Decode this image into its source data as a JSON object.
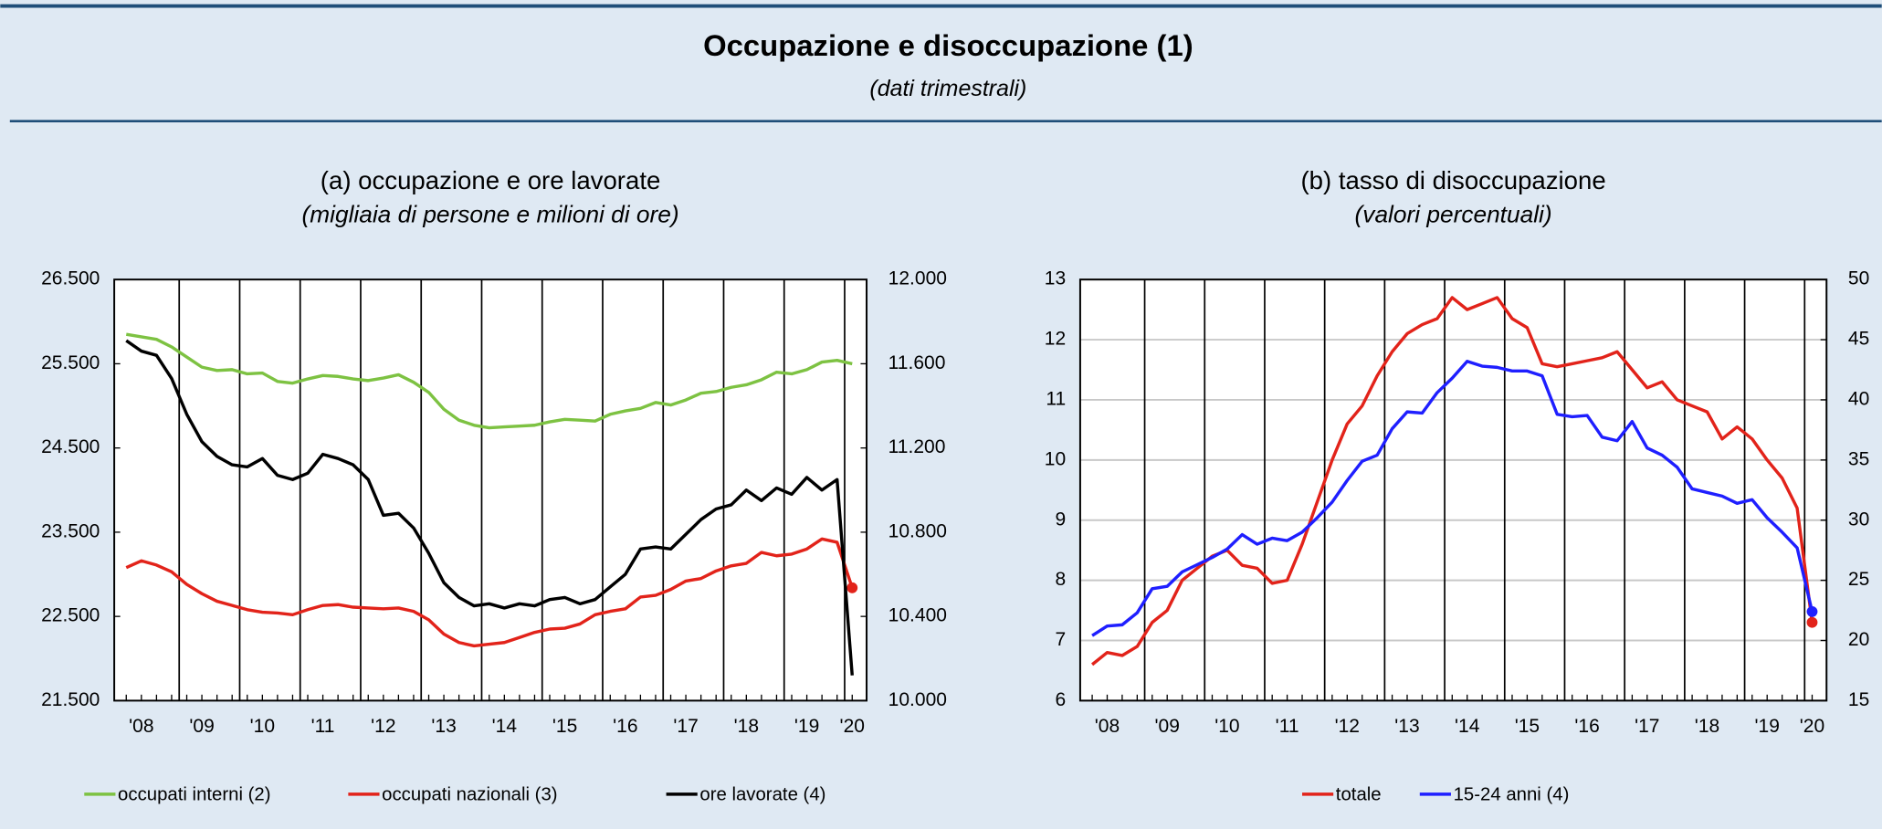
{
  "header": {
    "title": "Occupazione e disoccupazione (1)",
    "subtitle": "(dati trimestrali)"
  },
  "chart_data": [
    {
      "type": "line",
      "title": "(a) occupazione e ore lavorate",
      "subtitle": "(migliaia di persone e milioni di ore)",
      "categories": [
        null,
        "'08",
        null,
        null,
        null,
        "'09",
        null,
        null,
        null,
        "'10",
        null,
        null,
        null,
        "'11",
        null,
        null,
        null,
        "'12",
        null,
        null,
        null,
        "'13",
        null,
        null,
        null,
        "'14",
        null,
        null,
        null,
        "'15",
        null,
        null,
        null,
        "'16",
        null,
        null,
        null,
        "'17",
        null,
        null,
        null,
        "'18",
        null,
        null,
        null,
        "'19",
        null,
        null,
        "'20"
      ],
      "ylim": [
        21500,
        26500
      ],
      "yticks": [
        {
          "value": 21500,
          "label": "21.500"
        },
        {
          "value": 22500,
          "label": "22.500"
        },
        {
          "value": 23500,
          "label": "23.500"
        },
        {
          "value": 24500,
          "label": "24.500"
        },
        {
          "value": 25500,
          "label": "25.500"
        },
        {
          "value": 26500,
          "label": "26.500"
        }
      ],
      "y2lim": [
        10000,
        12000
      ],
      "y2ticks": [
        {
          "value": 10000,
          "label": "10.000"
        },
        {
          "value": 10400,
          "label": "10.400"
        },
        {
          "value": 10800,
          "label": "10.800"
        },
        {
          "value": 11200,
          "label": "11.200"
        },
        {
          "value": 11600,
          "label": "11.600"
        },
        {
          "value": 12000,
          "label": "12.000"
        }
      ],
      "grid": false,
      "series": [
        {
          "name": "occupati interni (2)",
          "color": "#7dc242",
          "axis": "y",
          "end_marker": false,
          "values": [
            25850,
            25820,
            25790,
            25700,
            25580,
            25460,
            25420,
            25430,
            25380,
            25390,
            25290,
            25270,
            25320,
            25360,
            25350,
            25320,
            25300,
            25330,
            25370,
            25280,
            25160,
            24960,
            24830,
            24770,
            24740,
            24750,
            24760,
            24770,
            24810,
            24840,
            24830,
            24820,
            24900,
            24940,
            24970,
            25040,
            25010,
            25070,
            25150,
            25170,
            25220,
            25250,
            25310,
            25400,
            25380,
            25430,
            25520,
            25540,
            25500
          ]
        },
        {
          "name": "occupati nazionali (3)",
          "color": "#e2231a",
          "axis": "y",
          "end_marker": true,
          "values": [
            23080,
            23160,
            23110,
            23030,
            22880,
            22770,
            22680,
            22630,
            22580,
            22550,
            22540,
            22520,
            22580,
            22630,
            22640,
            22610,
            22600,
            22590,
            22600,
            22560,
            22460,
            22290,
            22190,
            22150,
            22170,
            22190,
            22250,
            22310,
            22350,
            22360,
            22410,
            22520,
            22560,
            22590,
            22730,
            22750,
            22820,
            22920,
            22950,
            23040,
            23100,
            23130,
            23260,
            23220,
            23240,
            23300,
            23420,
            23380,
            22840
          ]
        },
        {
          "name": "ore lavorate (4)",
          "color": "#000000",
          "axis": "y2",
          "end_marker": false,
          "values": [
            11710,
            11660,
            11640,
            11530,
            11360,
            11230,
            11160,
            11120,
            11110,
            11150,
            11070,
            11050,
            11080,
            11170,
            11150,
            11120,
            11050,
            10880,
            10890,
            10820,
            10700,
            10560,
            10490,
            10450,
            10460,
            10440,
            10460,
            10450,
            10480,
            10490,
            10460,
            10480,
            10540,
            10600,
            10720,
            10730,
            10720,
            10790,
            10860,
            10910,
            10930,
            11000,
            10950,
            11010,
            10980,
            11060,
            11000,
            11050,
            10120
          ]
        }
      ]
    },
    {
      "type": "line",
      "title": "(b) tasso di disoccupazione",
      "subtitle": "(valori percentuali)",
      "categories": [
        null,
        "'08",
        null,
        null,
        null,
        "'09",
        null,
        null,
        null,
        "'10",
        null,
        null,
        null,
        "'11",
        null,
        null,
        null,
        "'12",
        null,
        null,
        null,
        "'13",
        null,
        null,
        null,
        "'14",
        null,
        null,
        null,
        "'15",
        null,
        null,
        null,
        "'16",
        null,
        null,
        null,
        "'17",
        null,
        null,
        null,
        "'18",
        null,
        null,
        null,
        "'19",
        null,
        null,
        "'20"
      ],
      "ylim": [
        6,
        13
      ],
      "yticks": [
        6,
        7,
        8,
        9,
        10,
        11,
        12,
        13
      ],
      "y2lim": [
        15,
        50
      ],
      "y2ticks": [
        15,
        20,
        25,
        30,
        35,
        40,
        45,
        50
      ],
      "grid": true,
      "series": [
        {
          "name": "totale",
          "color": "#e2231a",
          "axis": "y",
          "end_marker": true,
          "values": [
            6.6,
            6.8,
            6.75,
            6.9,
            7.3,
            7.5,
            8.0,
            8.2,
            8.4,
            8.5,
            8.25,
            8.2,
            7.95,
            8.0,
            8.6,
            9.3,
            10.0,
            10.6,
            10.9,
            11.4,
            11.8,
            12.1,
            12.25,
            12.35,
            12.7,
            12.5,
            12.6,
            12.7,
            12.35,
            12.2,
            11.6,
            11.55,
            11.6,
            11.65,
            11.7,
            11.8,
            11.5,
            11.2,
            11.3,
            11.0,
            10.9,
            10.8,
            10.35,
            10.55,
            10.35,
            10.0,
            9.7,
            9.2,
            7.3
          ]
        },
        {
          "name": "15-24 anni (4)",
          "color": "#1f1fff",
          "axis": "y2",
          "end_marker": true,
          "values": [
            20.4,
            21.2,
            21.3,
            22.3,
            24.3,
            24.5,
            25.7,
            26.3,
            26.9,
            27.6,
            28.8,
            28.0,
            28.5,
            28.3,
            29.0,
            30.2,
            31.5,
            33.3,
            34.9,
            35.4,
            37.6,
            39.0,
            38.9,
            40.6,
            41.8,
            43.2,
            42.8,
            42.7,
            42.4,
            42.4,
            42.0,
            38.8,
            38.6,
            38.7,
            36.9,
            36.6,
            38.2,
            36.0,
            35.4,
            34.4,
            32.6,
            32.3,
            32.0,
            31.4,
            31.7,
            30.2,
            29.0,
            27.7,
            22.4
          ]
        }
      ]
    }
  ]
}
